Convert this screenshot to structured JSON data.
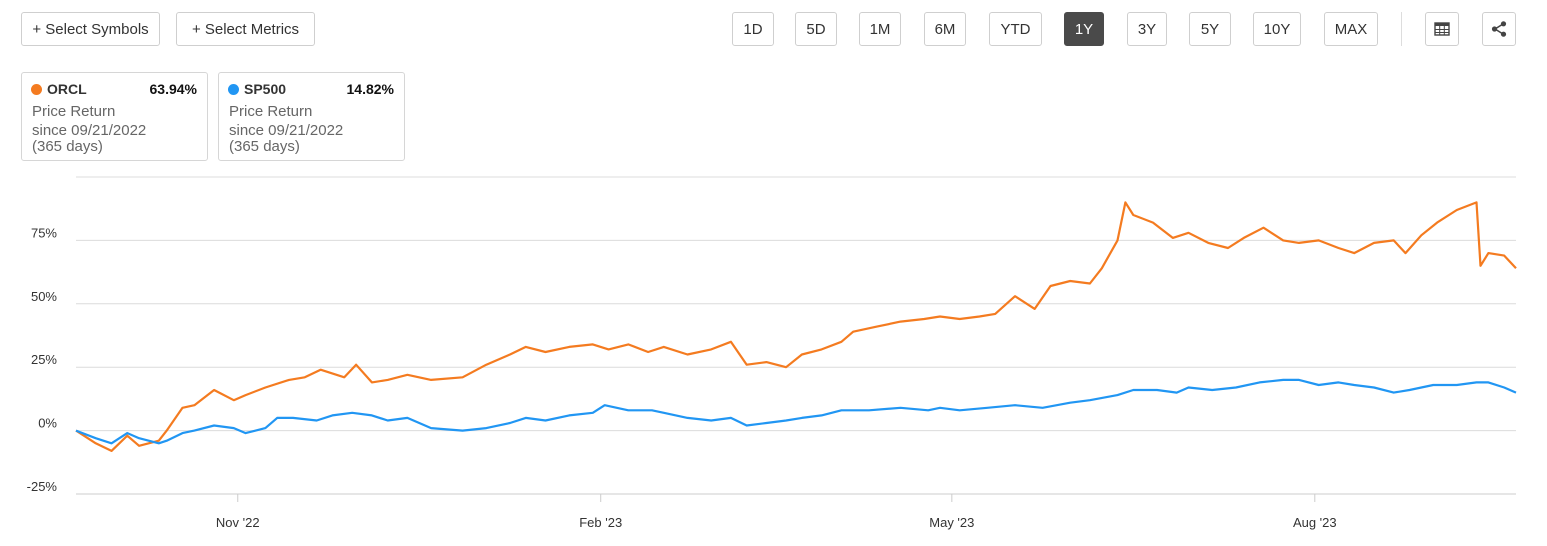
{
  "toolbar": {
    "select_symbols": "+ Select Symbols",
    "select_metrics": "+ Select Metrics",
    "periods": [
      "1D",
      "5D",
      "1M",
      "6M",
      "YTD",
      "1Y",
      "3Y",
      "5Y",
      "10Y",
      "MAX"
    ],
    "active_period": "1Y",
    "table_icon": "table-icon",
    "share_icon": "share-icon"
  },
  "cards": [
    {
      "symbol": "ORCL",
      "value": "63.94%",
      "metric": "Price Return",
      "since": "since 09/21/2022",
      "days": "(365 days)",
      "color": "#f47b20"
    },
    {
      "symbol": "SP500",
      "value": "14.82%",
      "metric": "Price Return",
      "since": "since 09/21/2022",
      "days": "(365 days)",
      "color": "#2196f3"
    }
  ],
  "chart_data": {
    "type": "line",
    "x_range": [
      "2022-09-21",
      "2023-09-21"
    ],
    "ylim": [
      -25,
      100
    ],
    "yticks": [
      -25,
      0,
      25,
      50,
      75
    ],
    "ytick_labels": [
      "-25%",
      "0%",
      "25%",
      "50%",
      "75%"
    ],
    "xticks": [
      {
        "date": "2022-11-01",
        "label": "Nov '22"
      },
      {
        "date": "2023-02-01",
        "label": "Feb '23"
      },
      {
        "date": "2023-05-01",
        "label": "May '23"
      },
      {
        "date": "2023-08-01",
        "label": "Aug '23"
      }
    ],
    "grid": true,
    "series": [
      {
        "name": "ORCL",
        "color": "#f47b20",
        "points": [
          [
            "2022-09-21",
            0
          ],
          [
            "2022-09-26",
            -5
          ],
          [
            "2022-09-30",
            -8
          ],
          [
            "2022-10-04",
            -2
          ],
          [
            "2022-10-07",
            -6
          ],
          [
            "2022-10-12",
            -4
          ],
          [
            "2022-10-14",
            0
          ],
          [
            "2022-10-18",
            9
          ],
          [
            "2022-10-21",
            10
          ],
          [
            "2022-10-26",
            16
          ],
          [
            "2022-10-31",
            12
          ],
          [
            "2022-11-03",
            14
          ],
          [
            "2022-11-08",
            17
          ],
          [
            "2022-11-14",
            20
          ],
          [
            "2022-11-18",
            21
          ],
          [
            "2022-11-22",
            24
          ],
          [
            "2022-11-28",
            21
          ],
          [
            "2022-12-01",
            26
          ],
          [
            "2022-12-05",
            19
          ],
          [
            "2022-12-09",
            20
          ],
          [
            "2022-12-14",
            22
          ],
          [
            "2022-12-20",
            20
          ],
          [
            "2022-12-28",
            21
          ],
          [
            "2023-01-03",
            26
          ],
          [
            "2023-01-09",
            30
          ],
          [
            "2023-01-13",
            33
          ],
          [
            "2023-01-18",
            31
          ],
          [
            "2023-01-24",
            33
          ],
          [
            "2023-01-30",
            34
          ],
          [
            "2023-02-03",
            32
          ],
          [
            "2023-02-08",
            34
          ],
          [
            "2023-02-13",
            31
          ],
          [
            "2023-02-17",
            33
          ],
          [
            "2023-02-23",
            30
          ],
          [
            "2023-03-01",
            32
          ],
          [
            "2023-03-06",
            35
          ],
          [
            "2023-03-10",
            26
          ],
          [
            "2023-03-15",
            27
          ],
          [
            "2023-03-20",
            25
          ],
          [
            "2023-03-24",
            30
          ],
          [
            "2023-03-29",
            32
          ],
          [
            "2023-04-03",
            35
          ],
          [
            "2023-04-06",
            39
          ],
          [
            "2023-04-12",
            41
          ],
          [
            "2023-04-18",
            43
          ],
          [
            "2023-04-24",
            44
          ],
          [
            "2023-04-28",
            45
          ],
          [
            "2023-05-03",
            44
          ],
          [
            "2023-05-08",
            45
          ],
          [
            "2023-05-12",
            46
          ],
          [
            "2023-05-17",
            53
          ],
          [
            "2023-05-22",
            48
          ],
          [
            "2023-05-26",
            57
          ],
          [
            "2023-05-31",
            59
          ],
          [
            "2023-06-05",
            58
          ],
          [
            "2023-06-08",
            64
          ],
          [
            "2023-06-12",
            75
          ],
          [
            "2023-06-14",
            90
          ],
          [
            "2023-06-16",
            85
          ],
          [
            "2023-06-21",
            82
          ],
          [
            "2023-06-26",
            76
          ],
          [
            "2023-06-30",
            78
          ],
          [
            "2023-07-05",
            74
          ],
          [
            "2023-07-10",
            72
          ],
          [
            "2023-07-14",
            76
          ],
          [
            "2023-07-19",
            80
          ],
          [
            "2023-07-24",
            75
          ],
          [
            "2023-07-28",
            74
          ],
          [
            "2023-08-02",
            75
          ],
          [
            "2023-08-07",
            72
          ],
          [
            "2023-08-11",
            70
          ],
          [
            "2023-08-16",
            74
          ],
          [
            "2023-08-21",
            75
          ],
          [
            "2023-08-24",
            70
          ],
          [
            "2023-08-28",
            77
          ],
          [
            "2023-09-01",
            82
          ],
          [
            "2023-09-06",
            87
          ],
          [
            "2023-09-11",
            90
          ],
          [
            "2023-09-12",
            65
          ],
          [
            "2023-09-14",
            70
          ],
          [
            "2023-09-18",
            69
          ],
          [
            "2023-09-21",
            64
          ]
        ]
      },
      {
        "name": "SP500",
        "color": "#2196f3",
        "points": [
          [
            "2022-09-21",
            0
          ],
          [
            "2022-09-26",
            -3
          ],
          [
            "2022-09-30",
            -5
          ],
          [
            "2022-10-04",
            -1
          ],
          [
            "2022-10-07",
            -3
          ],
          [
            "2022-10-12",
            -5
          ],
          [
            "2022-10-14",
            -4
          ],
          [
            "2022-10-18",
            -1
          ],
          [
            "2022-10-21",
            0
          ],
          [
            "2022-10-26",
            2
          ],
          [
            "2022-10-31",
            1
          ],
          [
            "2022-11-03",
            -1
          ],
          [
            "2022-11-08",
            1
          ],
          [
            "2022-11-11",
            5
          ],
          [
            "2022-11-15",
            5
          ],
          [
            "2022-11-21",
            4
          ],
          [
            "2022-11-25",
            6
          ],
          [
            "2022-11-30",
            7
          ],
          [
            "2022-12-05",
            6
          ],
          [
            "2022-12-09",
            4
          ],
          [
            "2022-12-14",
            5
          ],
          [
            "2022-12-20",
            1
          ],
          [
            "2022-12-28",
            0
          ],
          [
            "2023-01-03",
            1
          ],
          [
            "2023-01-09",
            3
          ],
          [
            "2023-01-13",
            5
          ],
          [
            "2023-01-18",
            4
          ],
          [
            "2023-01-24",
            6
          ],
          [
            "2023-01-30",
            7
          ],
          [
            "2023-02-02",
            10
          ],
          [
            "2023-02-08",
            8
          ],
          [
            "2023-02-14",
            8
          ],
          [
            "2023-02-17",
            7
          ],
          [
            "2023-02-23",
            5
          ],
          [
            "2023-03-01",
            4
          ],
          [
            "2023-03-06",
            5
          ],
          [
            "2023-03-10",
            2
          ],
          [
            "2023-03-15",
            3
          ],
          [
            "2023-03-20",
            4
          ],
          [
            "2023-03-24",
            5
          ],
          [
            "2023-03-29",
            6
          ],
          [
            "2023-04-03",
            8
          ],
          [
            "2023-04-10",
            8
          ],
          [
            "2023-04-18",
            9
          ],
          [
            "2023-04-25",
            8
          ],
          [
            "2023-04-28",
            9
          ],
          [
            "2023-05-03",
            8
          ],
          [
            "2023-05-10",
            9
          ],
          [
            "2023-05-17",
            10
          ],
          [
            "2023-05-24",
            9
          ],
          [
            "2023-05-31",
            11
          ],
          [
            "2023-06-05",
            12
          ],
          [
            "2023-06-12",
            14
          ],
          [
            "2023-06-16",
            16
          ],
          [
            "2023-06-22",
            16
          ],
          [
            "2023-06-27",
            15
          ],
          [
            "2023-06-30",
            17
          ],
          [
            "2023-07-06",
            16
          ],
          [
            "2023-07-12",
            17
          ],
          [
            "2023-07-18",
            19
          ],
          [
            "2023-07-24",
            20
          ],
          [
            "2023-07-28",
            20
          ],
          [
            "2023-08-02",
            18
          ],
          [
            "2023-08-07",
            19
          ],
          [
            "2023-08-11",
            18
          ],
          [
            "2023-08-16",
            17
          ],
          [
            "2023-08-21",
            15
          ],
          [
            "2023-08-25",
            16
          ],
          [
            "2023-08-31",
            18
          ],
          [
            "2023-09-06",
            18
          ],
          [
            "2023-09-11",
            19
          ],
          [
            "2023-09-14",
            19
          ],
          [
            "2023-09-18",
            17
          ],
          [
            "2023-09-21",
            15
          ]
        ]
      }
    ]
  }
}
